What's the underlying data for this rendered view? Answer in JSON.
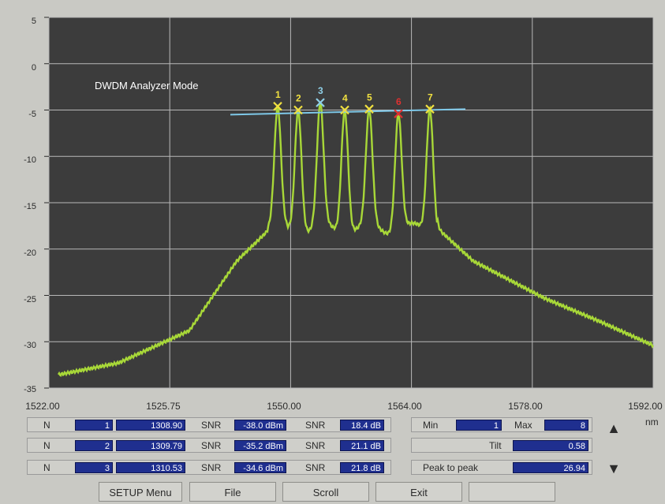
{
  "chart_data": {
    "type": "line",
    "title": "DWDM Analyzer Mode",
    "x_unit": "nm",
    "y_ticks": [
      "5",
      "0",
      "-5",
      "-10",
      "-15",
      "-20",
      "-25",
      "-30",
      "-35"
    ],
    "x_ticks": [
      "1522.00",
      "1525.75",
      "1550.00",
      "1564.00",
      "1578.00",
      "1592.00"
    ],
    "ylim": [
      -35,
      5
    ],
    "grid": true,
    "markers": [
      {
        "label": "1",
        "color": "#f0e040",
        "level": -4.6
      },
      {
        "label": "2",
        "color": "#f0e040",
        "level": -5.0
      },
      {
        "label": "3",
        "color": "#8fd0e8",
        "level": -4.2
      },
      {
        "label": "4",
        "color": "#f0e040",
        "level": -5.0
      },
      {
        "label": "5",
        "color": "#f0e040",
        "level": -4.9
      },
      {
        "label": "6",
        "color": "#e03030",
        "level": -5.4
      },
      {
        "label": "7",
        "color": "#f0e040",
        "level": -4.9
      }
    ],
    "colors": {
      "background": "#3c3c3c",
      "grid": "#b8b8b8",
      "trace": "#a8d838",
      "reference": "#7ec8e8"
    }
  },
  "channels": [
    {
      "n_label": "N",
      "n": "1",
      "wl": "1308.90",
      "snr1_label": "SNR",
      "snr1": "-38.0 dBm",
      "snr2_label": "SNR",
      "snr2": "18.4 dB"
    },
    {
      "n_label": "N",
      "n": "2",
      "wl": "1309.79",
      "snr1_label": "SNR",
      "snr1": "-35.2 dBm",
      "snr2_label": "SNR",
      "snr2": "21.1 dB"
    },
    {
      "n_label": "N",
      "n": "3",
      "wl": "1310.53",
      "snr1_label": "SNR",
      "snr1": "-34.6 dBm",
      "snr2_label": "SNR",
      "snr2": "21.8 dB"
    }
  ],
  "summary": {
    "min_label": "Min",
    "min": "1",
    "max_label": "Max",
    "max": "8",
    "tilt_label": "Tilt",
    "tilt": "0.58",
    "p2p_label": "Peak to peak",
    "p2p": "26.94"
  },
  "buttons": {
    "setup": "SETUP Menu",
    "file": "File",
    "scroll": "Scroll",
    "exit": "Exit",
    "blank": ""
  },
  "arrows": {
    "up": "▲",
    "down": "▼"
  }
}
